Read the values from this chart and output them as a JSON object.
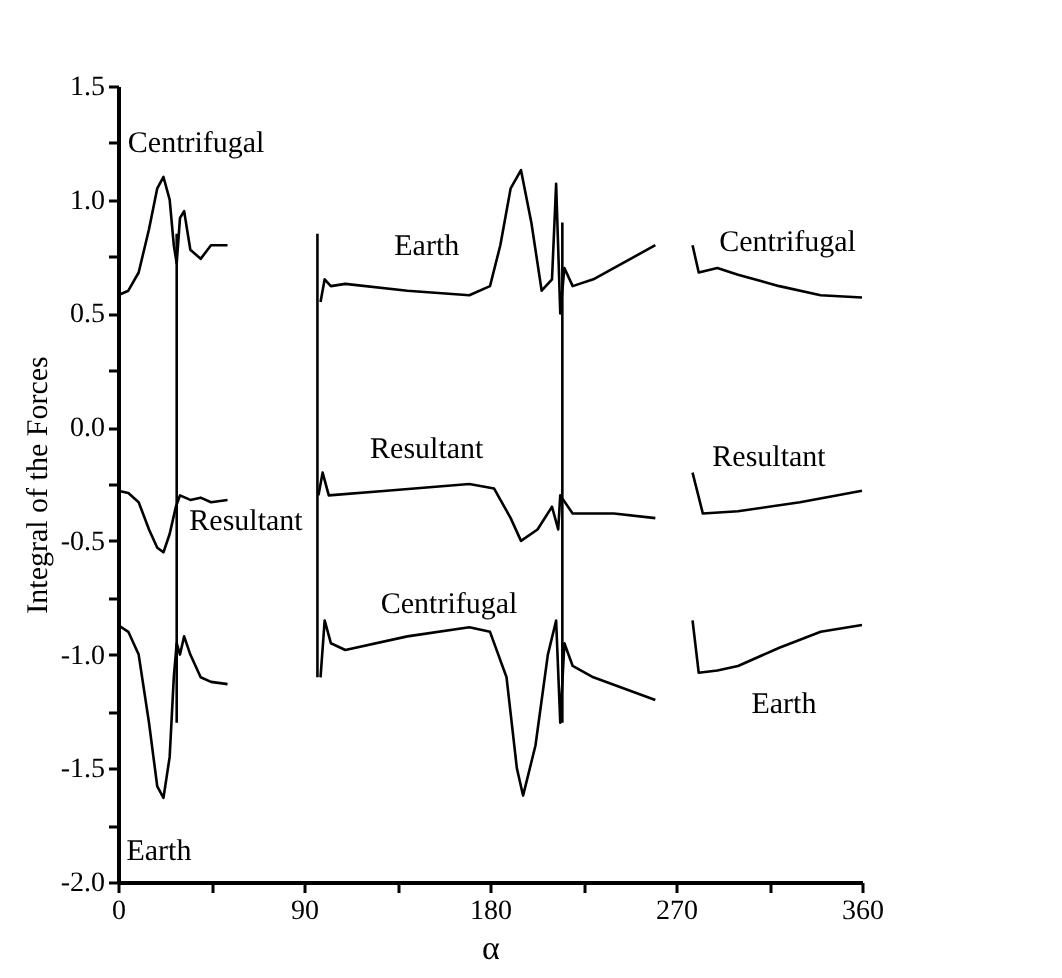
{
  "chart_data": {
    "type": "line",
    "xlabel": "α",
    "ylabel": "Integral of the Forces",
    "xlim": [
      0,
      360
    ],
    "xticks": [
      0,
      {
        "value": 45,
        "label": null
      },
      90,
      {
        "value": 135,
        "label": null
      },
      180,
      {
        "value": 225,
        "label": null
      },
      270,
      {
        "value": 315,
        "label": null
      },
      360
    ],
    "ylim": [
      -2,
      1.5
    ],
    "yticks": [
      {
        "value": -2,
        "label": "-2.0"
      },
      {
        "value": -1.75,
        "label": null
      },
      {
        "value": -1.5,
        "label": "-1.5"
      },
      {
        "value": -1.25,
        "label": null
      },
      {
        "value": -1,
        "label": "-1.0"
      },
      {
        "value": -0.75,
        "label": null
      },
      {
        "value": -0.5,
        "label": "-0.5"
      },
      {
        "value": -0.25,
        "label": null
      },
      {
        "value": 0,
        "label": "0.0"
      },
      {
        "value": 0.25,
        "label": null
      },
      {
        "value": 0.5,
        "label": "0.5"
      },
      {
        "value": 0.75,
        "label": null
      },
      {
        "value": 1,
        "label": "1.0"
      },
      {
        "value": 1.25,
        "label": null
      },
      {
        "value": 1.5,
        "label": "1.5"
      }
    ],
    "grid": false,
    "legend": false,
    "marker": "none",
    "line_style": "solid",
    "series": [
      {
        "color": "#000000",
        "x": [
          0,
          5,
          10,
          15,
          19,
          22,
          25,
          27,
          28.4,
          30,
          32,
          35,
          40,
          45,
          53,
          60,
          98,
          100,
          103,
          110,
          140,
          170,
          180,
          188,
          193,
          196,
          202,
          208,
          212,
          214,
          216,
          220,
          230,
          260,
          270,
          278,
          281,
          290,
          300,
          320,
          340,
          360
        ],
        "values": [
          0.58,
          0.6,
          0.68,
          0.87,
          1.05,
          1.1,
          1.0,
          0.8,
          0.72,
          0.92,
          0.95,
          0.78,
          0.74,
          0.8,
          0.8,
          null,
          -1.1,
          -0.85,
          -0.95,
          -0.98,
          -0.92,
          -0.88,
          -0.9,
          -1.1,
          -1.5,
          -1.62,
          -1.4,
          -1.0,
          -0.85,
          -1.3,
          -0.95,
          -1.05,
          -1.1,
          -1.2,
          null,
          0.8,
          0.68,
          0.7,
          0.67,
          0.62,
          0.58,
          0.57
        ]
      },
      {
        "color": "#000000",
        "x": [
          0,
          5,
          10,
          15,
          19,
          22,
          25,
          27,
          28.4,
          30,
          32,
          35,
          40,
          45,
          53,
          60,
          98,
          100,
          103,
          110,
          140,
          170,
          180,
          185,
          190,
          195,
          200,
          205,
          210,
          212,
          214,
          216,
          220,
          230,
          260,
          270,
          278,
          281,
          290,
          300,
          320,
          340,
          360
        ],
        "values": [
          -0.87,
          -0.9,
          -1.0,
          -1.3,
          -1.58,
          -1.63,
          -1.45,
          -1.1,
          -0.95,
          -1.0,
          -0.92,
          -1.0,
          -1.1,
          -1.12,
          -1.13,
          null,
          0.55,
          0.65,
          0.62,
          0.63,
          0.6,
          0.58,
          0.62,
          0.8,
          1.05,
          1.13,
          0.9,
          0.6,
          0.65,
          1.07,
          0.5,
          0.7,
          0.62,
          0.65,
          0.8,
          null,
          -0.85,
          -1.08,
          -1.07,
          -1.05,
          -0.97,
          -0.9,
          -0.87
        ]
      },
      {
        "color": "#000000",
        "x": [
          0,
          5,
          10,
          15,
          19,
          22,
          25,
          28,
          30,
          35,
          40,
          45,
          53,
          60,
          97,
          99,
          102,
          130,
          170,
          182,
          190,
          195,
          203,
          210,
          213,
          214,
          220,
          240,
          260,
          270,
          278,
          283,
          300,
          330,
          360
        ],
        "values": [
          -0.28,
          -0.29,
          -0.33,
          -0.45,
          -0.53,
          -0.55,
          -0.47,
          -0.35,
          -0.3,
          -0.32,
          -0.31,
          -0.33,
          -0.32,
          null,
          -0.3,
          -0.2,
          -0.3,
          -0.28,
          -0.25,
          -0.27,
          -0.4,
          -0.5,
          -0.45,
          -0.35,
          -0.45,
          -0.3,
          -0.38,
          -0.38,
          -0.4,
          null,
          -0.2,
          -0.38,
          -0.37,
          -0.33,
          -0.28
        ]
      },
      {
        "color": "#000000",
        "x": [
          28.4,
          28.4
        ],
        "values": [
          0.85,
          -1.3
        ]
      },
      {
        "color": "#000000",
        "x": [
          96.5,
          96.5
        ],
        "values": [
          0.85,
          -1.1
        ]
      },
      {
        "color": "#000000",
        "x": [
          215,
          215
        ],
        "values": [
          0.9,
          -1.3
        ]
      }
    ],
    "annotations": [
      "Centrifugal",
      "Resultant",
      "Earth",
      "Earth",
      "Resultant",
      "Centrifugal",
      "Centrifugal",
      "Resultant",
      "Earth"
    ]
  }
}
